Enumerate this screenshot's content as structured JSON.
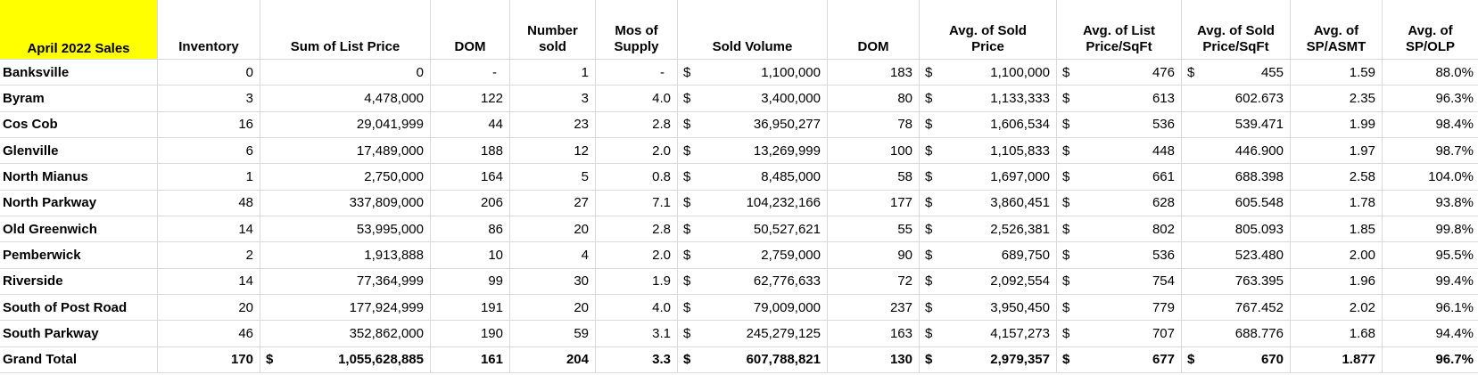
{
  "colors": {
    "highlight_yellow": "#ffff00",
    "gridline": "#d9d9d9",
    "text": "#000000",
    "background": "#ffffff"
  },
  "table": {
    "title": "April 2022 Sales",
    "column_headers": [
      "Inventory",
      "Sum of List Price",
      "DOM",
      "Number\nsold",
      "Mos of\nSupply",
      "Sold Volume",
      "DOM",
      "Avg. of Sold\nPrice",
      "Avg. of List\nPrice/SqFt",
      "Avg. of Sold\nPrice/SqFt",
      "Avg. of\nSP/ASMT",
      "Avg. of\nSP/OLP"
    ],
    "rows": [
      {
        "area": "Banksville",
        "bold": false,
        "cells": [
          {
            "v": "0"
          },
          {
            "v": "0"
          },
          {
            "v": "-",
            "dash": true
          },
          {
            "v": "1"
          },
          {
            "v": "-",
            "dash": true
          },
          {
            "v": "1,100,000",
            "cur": true
          },
          {
            "v": "183"
          },
          {
            "v": "1,100,000",
            "cur": true
          },
          {
            "v": "476",
            "cur": true
          },
          {
            "v": "455",
            "cur": true
          },
          {
            "v": "1.59"
          },
          {
            "v": "88.0%",
            "pct": true
          }
        ]
      },
      {
        "area": "Byram",
        "bold": false,
        "cells": [
          {
            "v": "3"
          },
          {
            "v": "4,478,000"
          },
          {
            "v": "122"
          },
          {
            "v": "3"
          },
          {
            "v": "4.0"
          },
          {
            "v": "3,400,000",
            "cur": true
          },
          {
            "v": "80"
          },
          {
            "v": "1,133,333",
            "cur": true
          },
          {
            "v": "613",
            "cur": true
          },
          {
            "v": "602.673"
          },
          {
            "v": "2.35"
          },
          {
            "v": "96.3%",
            "pct": true
          }
        ]
      },
      {
        "area": "Cos Cob",
        "bold": false,
        "cells": [
          {
            "v": "16"
          },
          {
            "v": "29,041,999"
          },
          {
            "v": "44"
          },
          {
            "v": "23"
          },
          {
            "v": "2.8"
          },
          {
            "v": "36,950,277",
            "cur": true
          },
          {
            "v": "78"
          },
          {
            "v": "1,606,534",
            "cur": true
          },
          {
            "v": "536",
            "cur": true
          },
          {
            "v": "539.471"
          },
          {
            "v": "1.99"
          },
          {
            "v": "98.4%",
            "pct": true
          }
        ]
      },
      {
        "area": "Glenville",
        "bold": false,
        "cells": [
          {
            "v": "6"
          },
          {
            "v": "17,489,000"
          },
          {
            "v": "188"
          },
          {
            "v": "12"
          },
          {
            "v": "2.0"
          },
          {
            "v": "13,269,999",
            "cur": true
          },
          {
            "v": "100"
          },
          {
            "v": "1,105,833",
            "cur": true
          },
          {
            "v": "448",
            "cur": true
          },
          {
            "v": "446.900"
          },
          {
            "v": "1.97"
          },
          {
            "v": "98.7%",
            "pct": true
          }
        ]
      },
      {
        "area": "North Mianus",
        "bold": false,
        "cells": [
          {
            "v": "1"
          },
          {
            "v": "2,750,000"
          },
          {
            "v": "164"
          },
          {
            "v": "5"
          },
          {
            "v": "0.8"
          },
          {
            "v": "8,485,000",
            "cur": true
          },
          {
            "v": "58"
          },
          {
            "v": "1,697,000",
            "cur": true
          },
          {
            "v": "661",
            "cur": true
          },
          {
            "v": "688.398"
          },
          {
            "v": "2.58"
          },
          {
            "v": "104.0%",
            "pct": true
          }
        ]
      },
      {
        "area": "North Parkway",
        "bold": false,
        "cells": [
          {
            "v": "48"
          },
          {
            "v": "337,809,000"
          },
          {
            "v": "206"
          },
          {
            "v": "27"
          },
          {
            "v": "7.1"
          },
          {
            "v": "104,232,166",
            "cur": true
          },
          {
            "v": "177"
          },
          {
            "v": "3,860,451",
            "cur": true
          },
          {
            "v": "628",
            "cur": true
          },
          {
            "v": "605.548"
          },
          {
            "v": "1.78"
          },
          {
            "v": "93.8%",
            "pct": true
          }
        ]
      },
      {
        "area": "Old Greenwich",
        "bold": false,
        "cells": [
          {
            "v": "14"
          },
          {
            "v": "53,995,000"
          },
          {
            "v": "86"
          },
          {
            "v": "20"
          },
          {
            "v": "2.8"
          },
          {
            "v": "50,527,621",
            "cur": true
          },
          {
            "v": "55"
          },
          {
            "v": "2,526,381",
            "cur": true
          },
          {
            "v": "802",
            "cur": true
          },
          {
            "v": "805.093"
          },
          {
            "v": "1.85"
          },
          {
            "v": "99.8%",
            "pct": true
          }
        ]
      },
      {
        "area": "Pemberwick",
        "bold": false,
        "cells": [
          {
            "v": "2"
          },
          {
            "v": "1,913,888"
          },
          {
            "v": "10"
          },
          {
            "v": "4"
          },
          {
            "v": "2.0"
          },
          {
            "v": "2,759,000",
            "cur": true
          },
          {
            "v": "90"
          },
          {
            "v": "689,750",
            "cur": true
          },
          {
            "v": "536",
            "cur": true
          },
          {
            "v": "523.480"
          },
          {
            "v": "2.00"
          },
          {
            "v": "95.5%",
            "pct": true
          }
        ]
      },
      {
        "area": "Riverside",
        "bold": false,
        "cells": [
          {
            "v": "14"
          },
          {
            "v": "77,364,999"
          },
          {
            "v": "99"
          },
          {
            "v": "30"
          },
          {
            "v": "1.9"
          },
          {
            "v": "62,776,633",
            "cur": true
          },
          {
            "v": "72"
          },
          {
            "v": "2,092,554",
            "cur": true
          },
          {
            "v": "754",
            "cur": true
          },
          {
            "v": "763.395"
          },
          {
            "v": "1.96"
          },
          {
            "v": "99.4%",
            "pct": true
          }
        ]
      },
      {
        "area": "South of Post Road",
        "bold": false,
        "cells": [
          {
            "v": "20"
          },
          {
            "v": "177,924,999"
          },
          {
            "v": "191"
          },
          {
            "v": "20"
          },
          {
            "v": "4.0"
          },
          {
            "v": "79,009,000",
            "cur": true
          },
          {
            "v": "237"
          },
          {
            "v": "3,950,450",
            "cur": true
          },
          {
            "v": "779",
            "cur": true
          },
          {
            "v": "767.452"
          },
          {
            "v": "2.02"
          },
          {
            "v": "96.1%",
            "pct": true
          }
        ]
      },
      {
        "area": "South Parkway",
        "bold": false,
        "cells": [
          {
            "v": "46"
          },
          {
            "v": "352,862,000"
          },
          {
            "v": "190"
          },
          {
            "v": "59"
          },
          {
            "v": "3.1"
          },
          {
            "v": "245,279,125",
            "cur": true
          },
          {
            "v": "163"
          },
          {
            "v": "4,157,273",
            "cur": true
          },
          {
            "v": "707",
            "cur": true
          },
          {
            "v": "688.776"
          },
          {
            "v": "1.68"
          },
          {
            "v": "94.4%",
            "pct": true
          }
        ]
      },
      {
        "area": "Grand Total",
        "bold": true,
        "cells": [
          {
            "v": "170"
          },
          {
            "v": "1,055,628,885",
            "cur": true
          },
          {
            "v": "161"
          },
          {
            "v": "204"
          },
          {
            "v": "3.3"
          },
          {
            "v": "607,788,821",
            "cur": true
          },
          {
            "v": "130"
          },
          {
            "v": "2,979,357",
            "cur": true
          },
          {
            "v": "677",
            "cur": true
          },
          {
            "v": "670",
            "cur": true
          },
          {
            "v": "1.877"
          },
          {
            "v": "96.7%",
            "pct": true
          }
        ]
      }
    ]
  }
}
